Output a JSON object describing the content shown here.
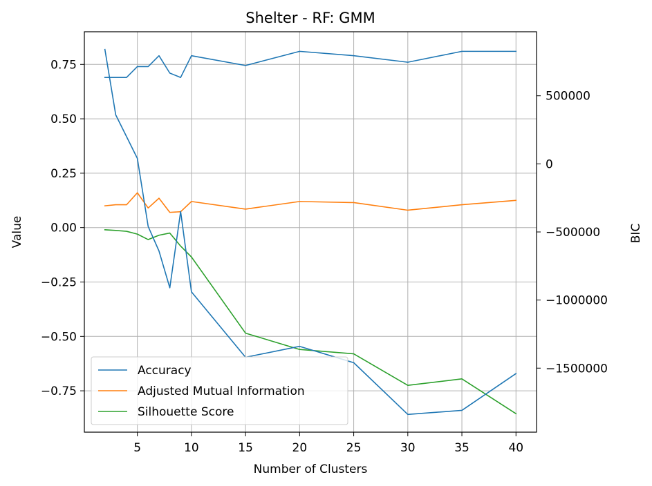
{
  "chart_data": {
    "type": "line",
    "title": "Shelter - RF: GMM",
    "xlabel": "Number of Clusters",
    "ylabel": "Value",
    "y2label": "BIC",
    "xlim": [
      0.1,
      41.9
    ],
    "ylim": [
      -0.94,
      0.9
    ],
    "y2lim": [
      -1970000,
      970000
    ],
    "grid": true,
    "legend_position": "lower-left",
    "x_ticks": [
      5,
      10,
      15,
      20,
      25,
      30,
      35,
      40
    ],
    "x_tick_labels": [
      "5",
      "10",
      "15",
      "20",
      "25",
      "30",
      "35",
      "40"
    ],
    "y_ticks": [
      0.75,
      0.5,
      0.25,
      0.0,
      -0.25,
      -0.5,
      -0.75
    ],
    "y_tick_labels": [
      "0.75",
      "0.50",
      "0.25",
      "0.00",
      "−0.25",
      "−0.50",
      "−0.75"
    ],
    "y2_ticks": [
      500000,
      0,
      -500000,
      -1000000,
      -1500000
    ],
    "y2_tick_labels": [
      "500000",
      "0",
      "−500000",
      "−1000000",
      "−1500000"
    ],
    "x": [
      2,
      3,
      4,
      5,
      6,
      7,
      8,
      9,
      10,
      15,
      20,
      25,
      30,
      35,
      40
    ],
    "series": [
      {
        "name": "Accuracy",
        "axis": "left",
        "color": "#1f77b4",
        "values": [
          0.69,
          0.69,
          0.69,
          0.74,
          0.74,
          0.79,
          0.71,
          0.69,
          0.79,
          0.745,
          0.81,
          0.79,
          0.76,
          0.81,
          0.81
        ]
      },
      {
        "name": "Adjusted Mutual Information",
        "axis": "left",
        "color": "#ff7f0e",
        "values": [
          0.1,
          0.105,
          0.105,
          0.16,
          0.09,
          0.135,
          0.07,
          0.073,
          0.12,
          0.085,
          0.12,
          0.115,
          0.08,
          0.105,
          0.125
        ]
      },
      {
        "name": "Silhouette Score",
        "axis": "left",
        "color": "#2ca02c",
        "values": [
          -0.01,
          -0.013,
          -0.017,
          -0.03,
          -0.055,
          -0.035,
          -0.025,
          -0.085,
          -0.135,
          -0.485,
          -0.56,
          -0.58,
          -0.725,
          -0.695,
          -0.855
        ]
      },
      {
        "name": "BIC",
        "axis": "right",
        "color": "#1f77b4",
        "values": [
          840000,
          360000,
          200000,
          40000,
          -460000,
          -640000,
          -910000,
          -350000,
          -940000,
          -1420000,
          -1340000,
          -1460000,
          -1840000,
          -1810000,
          -1540000
        ]
      }
    ]
  }
}
